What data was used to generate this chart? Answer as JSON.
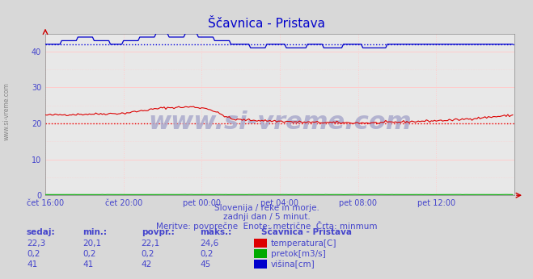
{
  "title": "Ščavnica - Pristava",
  "bg_color": "#d8d8d8",
  "plot_bg_color": "#e8e8e8",
  "x_tick_labels": [
    "čet 16:00",
    "čet 20:00",
    "pet 00:00",
    "pet 04:00",
    "pet 08:00",
    "pet 12:00"
  ],
  "x_tick_positions": [
    0,
    48,
    96,
    144,
    192,
    240
  ],
  "ylim": [
    0,
    45
  ],
  "xlim": [
    0,
    288
  ],
  "yticks": [
    0,
    10,
    20,
    30,
    40
  ],
  "subtitle1": "Slovenija / reke in morje.",
  "subtitle2": "zadnji dan / 5 minut.",
  "subtitle3": "Meritve: povprečne  Enote: metrične  Črta: minmum",
  "text_color": "#4444cc",
  "title_color": "#0000cc",
  "table_headers": [
    "sedaj:",
    "min.:",
    "povpr.:",
    "maks.:"
  ],
  "table_rows": [
    [
      "22,3",
      "20,1",
      "22,1",
      "24,6"
    ],
    [
      "0,2",
      "0,2",
      "0,2",
      "0,2"
    ],
    [
      "41",
      "41",
      "42",
      "45"
    ]
  ],
  "legend_title": "Ščavnica - Pristava",
  "legend_items": [
    {
      "label": "temperatura[C]",
      "color": "#dd0000"
    },
    {
      "label": "pretok[m3/s]",
      "color": "#00aa00"
    },
    {
      "label": "višina[cm]",
      "color": "#0000cc"
    }
  ],
  "watermark": "www.si-vreme.com",
  "watermark_color": "#aaaacc",
  "left_label": "www.si-vreme.com",
  "n_points": 288,
  "temp_min": 20.1,
  "height_avg": 42
}
